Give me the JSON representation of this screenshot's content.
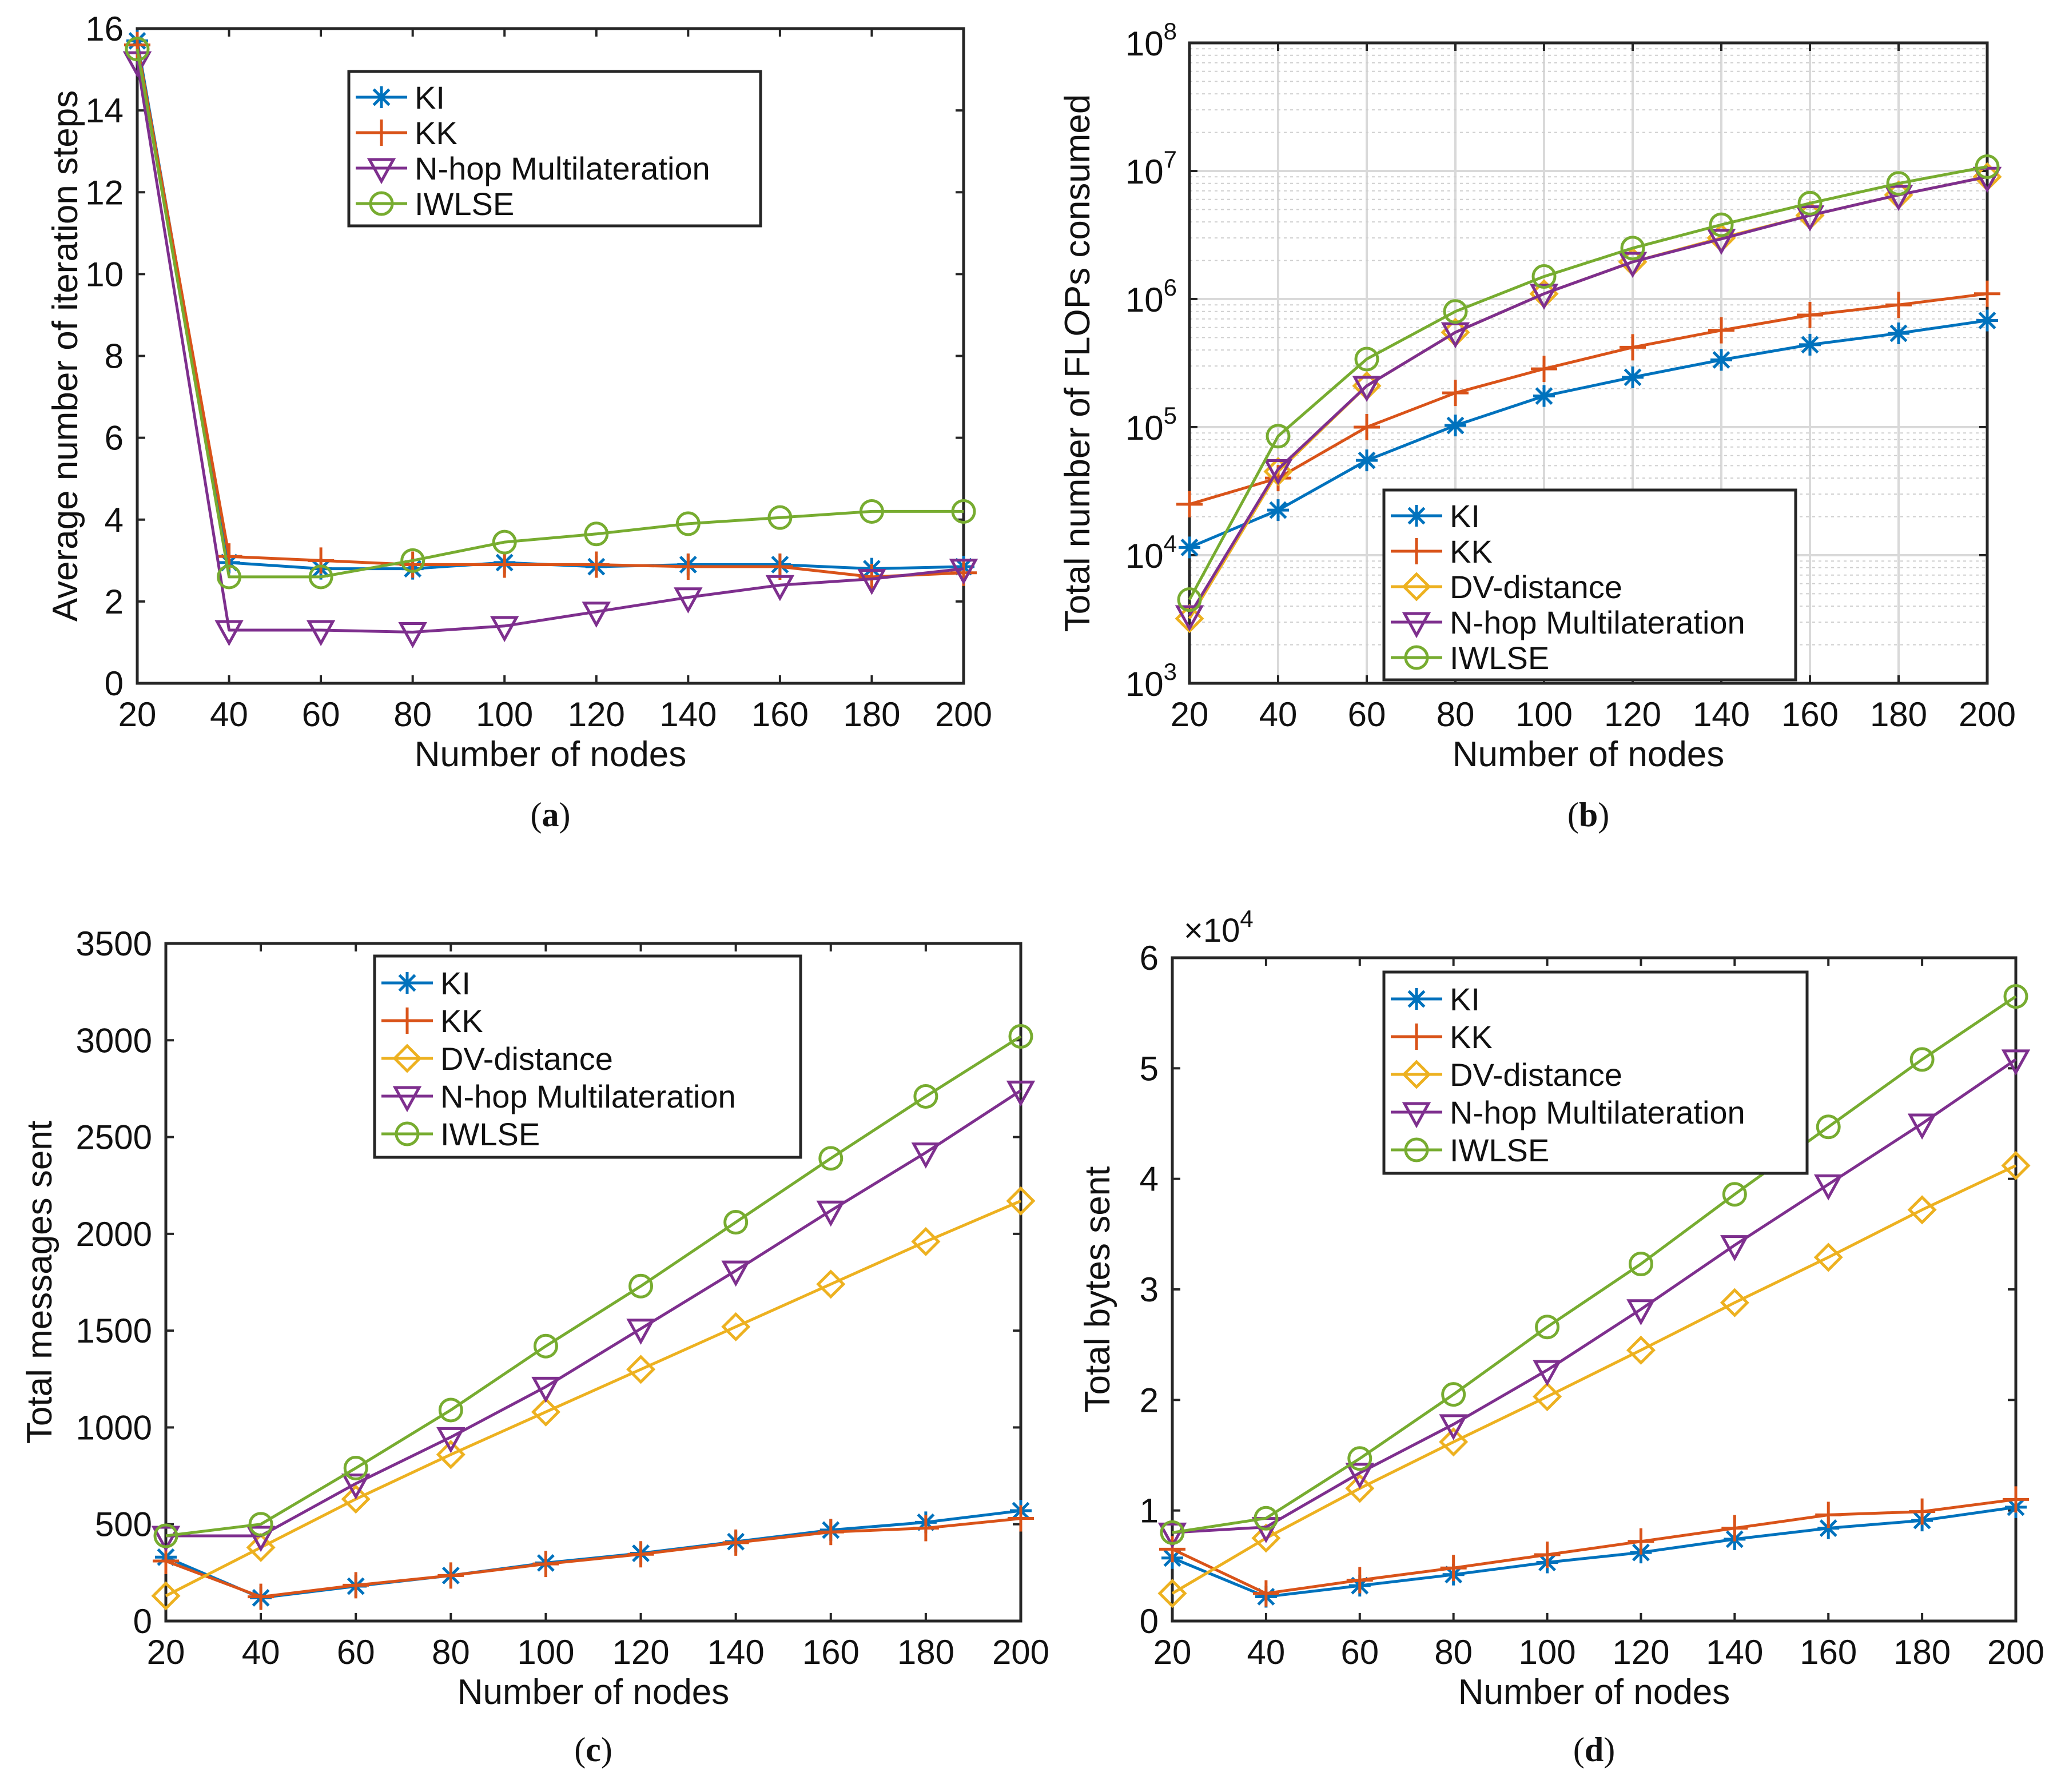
{
  "colors": {
    "KI": "#0072BD",
    "KK": "#D95319",
    "DV-distance": "#EDB120",
    "N-hop Multilateration": "#7E2F8E",
    "IWLSE": "#77AC30"
  },
  "chart_data": [
    {
      "panel": "a",
      "caption_letter": "a",
      "type": "line",
      "title": "",
      "xlabel": "Number of nodes",
      "ylabel": "Average number of iteration steps",
      "xscale": "linear",
      "yscale": "linear",
      "xlim": [
        20,
        200
      ],
      "ylim": [
        0,
        16
      ],
      "xticks": [
        20,
        40,
        60,
        80,
        100,
        120,
        140,
        160,
        180,
        200
      ],
      "yticks": [
        0,
        2,
        4,
        6,
        8,
        10,
        12,
        14,
        16
      ],
      "grid": false,
      "legend_position": "top-center",
      "x": [
        20,
        40,
        60,
        80,
        100,
        120,
        140,
        160,
        180,
        200
      ],
      "series": [
        {
          "name": "KI",
          "marker": "star",
          "values": [
            15.7,
            2.95,
            2.8,
            2.8,
            2.95,
            2.85,
            2.9,
            2.9,
            2.8,
            2.85
          ]
        },
        {
          "name": "KK",
          "marker": "plus",
          "values": [
            15.6,
            3.1,
            3.0,
            2.9,
            2.9,
            2.9,
            2.85,
            2.85,
            2.6,
            2.7
          ]
        },
        {
          "name": "N-hop Multilateration",
          "marker": "tri-down",
          "values": [
            15.2,
            1.3,
            1.3,
            1.25,
            1.4,
            1.75,
            2.1,
            2.4,
            2.55,
            2.8
          ]
        },
        {
          "name": "IWLSE",
          "marker": "circle",
          "values": [
            15.5,
            2.6,
            2.6,
            3.0,
            3.45,
            3.65,
            3.9,
            4.05,
            4.2,
            4.2
          ]
        }
      ]
    },
    {
      "panel": "b",
      "caption_letter": "b",
      "type": "line",
      "title": "",
      "xlabel": "Number of nodes",
      "ylabel": "Total number of FLOPs consumed",
      "xscale": "linear",
      "yscale": "log",
      "xlim": [
        20,
        200
      ],
      "ylim": [
        1000,
        100000000
      ],
      "xticks": [
        20,
        40,
        60,
        80,
        100,
        120,
        140,
        160,
        180,
        200
      ],
      "ytick_exponents": [
        "3",
        "4",
        "5",
        "6",
        "7",
        "8"
      ],
      "ytick_base": "10",
      "grid": true,
      "legend_position": "bottom-right",
      "x": [
        20,
        40,
        60,
        80,
        100,
        120,
        140,
        160,
        180,
        200
      ],
      "series": [
        {
          "name": "KI",
          "marker": "star",
          "values": [
            11500,
            22500,
            55000,
            103000,
            175000,
            245000,
            335000,
            440000,
            540000,
            680000
          ]
        },
        {
          "name": "KK",
          "marker": "plus",
          "values": [
            25000,
            40000,
            100000,
            185000,
            285000,
            420000,
            570000,
            750000,
            900000,
            1100000
          ]
        },
        {
          "name": "DV-distance",
          "marker": "diamond",
          "values": [
            3200,
            45000,
            210000,
            550000,
            1100000,
            1950000,
            3000000,
            4500000,
            6500000,
            9000000
          ]
        },
        {
          "name": "N-hop Multilateration",
          "marker": "tri-down",
          "values": [
            3400,
            47000,
            210000,
            550000,
            1100000,
            1950000,
            2950000,
            4500000,
            6500000,
            9000000
          ]
        },
        {
          "name": "IWLSE",
          "marker": "circle",
          "values": [
            4500,
            85000,
            340000,
            800000,
            1500000,
            2500000,
            3800000,
            5600000,
            8000000,
            10800000
          ]
        }
      ]
    },
    {
      "panel": "c",
      "caption_letter": "c",
      "type": "line",
      "title": "",
      "xlabel": "Number of nodes",
      "ylabel": "Total messages sent",
      "xscale": "linear",
      "yscale": "linear",
      "xlim": [
        20,
        200
      ],
      "ylim": [
        0,
        3500
      ],
      "xticks": [
        20,
        40,
        60,
        80,
        100,
        120,
        140,
        160,
        180,
        200
      ],
      "yticks": [
        0,
        500,
        1000,
        1500,
        2000,
        2500,
        3000,
        3500
      ],
      "grid": false,
      "legend_position": "top-center",
      "x": [
        20,
        40,
        60,
        80,
        100,
        120,
        140,
        160,
        180,
        200
      ],
      "series": [
        {
          "name": "KI",
          "marker": "star",
          "values": [
            330,
            120,
            180,
            235,
            300,
            350,
            410,
            470,
            510,
            570
          ]
        },
        {
          "name": "KK",
          "marker": "plus",
          "values": [
            310,
            125,
            185,
            235,
            295,
            345,
            405,
            460,
            480,
            530
          ]
        },
        {
          "name": "DV-distance",
          "marker": "diamond",
          "values": [
            130,
            380,
            630,
            860,
            1080,
            1300,
            1520,
            1740,
            1960,
            2170
          ]
        },
        {
          "name": "N-hop Multilateration",
          "marker": "tri-down",
          "values": [
            440,
            440,
            710,
            950,
            1210,
            1510,
            1810,
            2120,
            2420,
            2740
          ]
        },
        {
          "name": "IWLSE",
          "marker": "circle",
          "values": [
            440,
            500,
            790,
            1090,
            1420,
            1730,
            2060,
            2390,
            2710,
            3020
          ]
        }
      ]
    },
    {
      "panel": "d",
      "caption_letter": "d",
      "type": "line",
      "title": "",
      "xlabel": "Number of nodes",
      "ylabel": "Total bytes sent",
      "xscale": "linear",
      "yscale": "linear",
      "xlim": [
        20,
        200
      ],
      "ylim": [
        0,
        6
      ],
      "axis_multiplier_base": "×10",
      "axis_multiplier_exponent": "4",
      "xticks": [
        20,
        40,
        60,
        80,
        100,
        120,
        140,
        160,
        180,
        200
      ],
      "yticks": [
        0,
        1,
        2,
        3,
        4,
        5,
        6
      ],
      "grid": false,
      "legend_position": "top-center",
      "x": [
        20,
        40,
        60,
        80,
        100,
        120,
        140,
        160,
        180,
        200
      ],
      "series": [
        {
          "name": "KI",
          "marker": "star",
          "values": [
            0.57,
            0.22,
            0.32,
            0.42,
            0.53,
            0.62,
            0.74,
            0.84,
            0.91,
            1.03
          ]
        },
        {
          "name": "KK",
          "marker": "plus",
          "values": [
            0.65,
            0.25,
            0.37,
            0.48,
            0.6,
            0.72,
            0.84,
            0.96,
            0.99,
            1.1
          ]
        },
        {
          "name": "DV-distance",
          "marker": "diamond",
          "values": [
            0.25,
            0.75,
            1.2,
            1.62,
            2.03,
            2.45,
            2.88,
            3.29,
            3.72,
            4.12
          ]
        },
        {
          "name": "N-hop Multilateration",
          "marker": "tri-down",
          "values": [
            0.8,
            0.85,
            1.34,
            1.78,
            2.27,
            2.82,
            3.4,
            3.95,
            4.5,
            5.08
          ]
        },
        {
          "name": "IWLSE",
          "marker": "circle",
          "values": [
            0.8,
            0.93,
            1.47,
            2.05,
            2.66,
            3.23,
            3.86,
            4.47,
            5.08,
            5.65
          ]
        }
      ]
    }
  ]
}
